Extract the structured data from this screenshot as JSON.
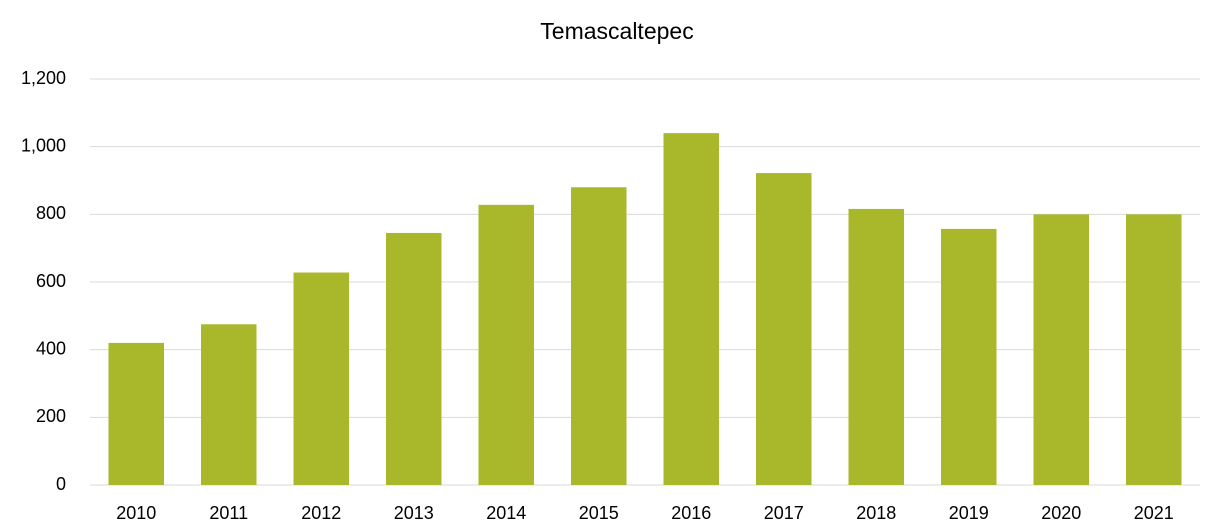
{
  "chart_data": {
    "type": "bar",
    "title": "Temascaltepec",
    "categories": [
      "2010",
      "2011",
      "2012",
      "2013",
      "2014",
      "2015",
      "2016",
      "2017",
      "2018",
      "2019",
      "2020",
      "2021"
    ],
    "values": [
      420,
      475,
      628,
      745,
      828,
      880,
      1040,
      922,
      816,
      757,
      800,
      800
    ],
    "color": "#a9b82a",
    "ylim": [
      0,
      1200
    ],
    "yticks": [
      0,
      200,
      400,
      600,
      800,
      {
        "value": 1000,
        "label": "1,000"
      },
      {
        "value": 1200,
        "label": "1,200"
      }
    ],
    "grid": true
  }
}
